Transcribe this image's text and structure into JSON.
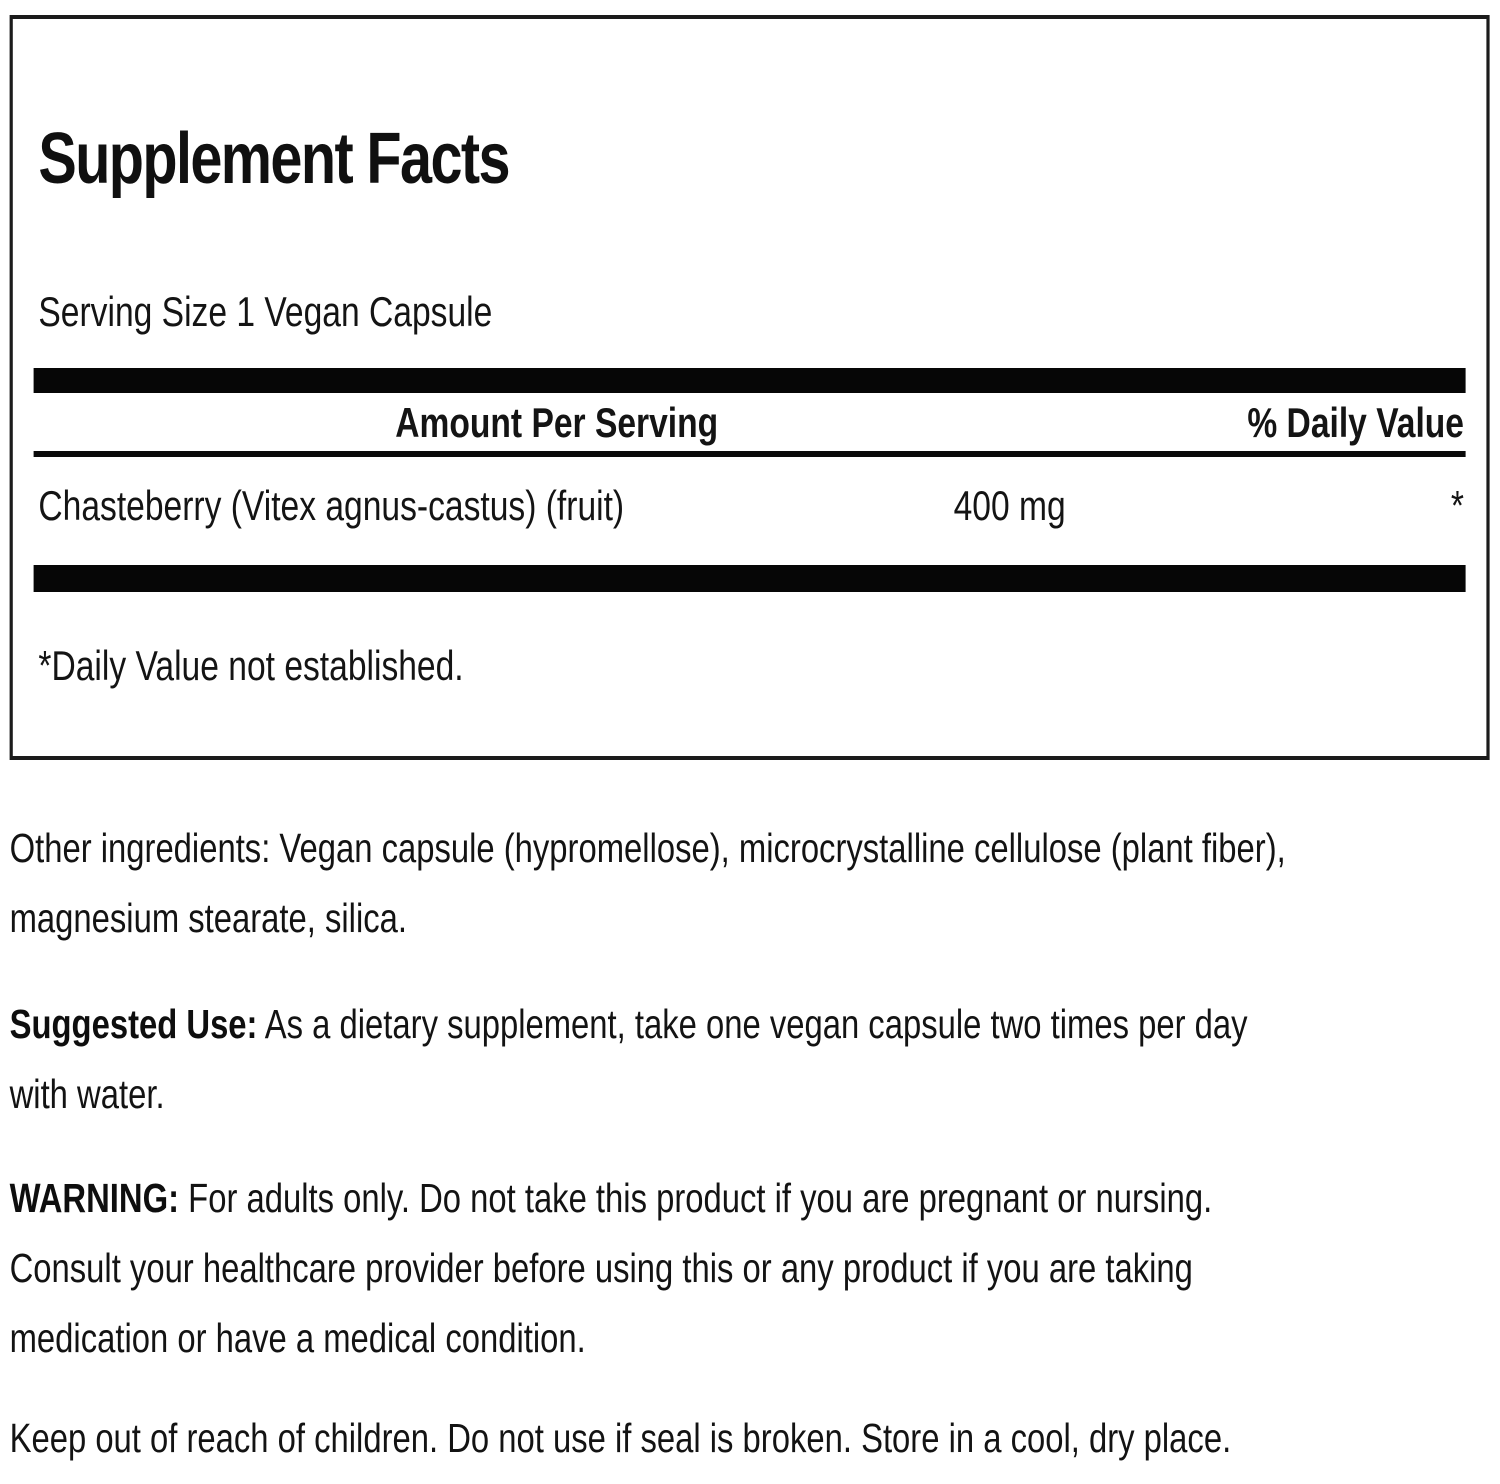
{
  "colors": {
    "text": "#141414",
    "panel_border": "#1b1b1b",
    "bar": "#060606",
    "background": "#ffffff"
  },
  "panel": {
    "title": "Supplement Facts",
    "serving_size": "Serving Size 1 Vegan Capsule",
    "columns": {
      "amount": "Amount Per Serving",
      "daily_value": "% Daily Value"
    },
    "rows": [
      {
        "name": "Chasteberry (Vitex agnus-castus) (fruit)",
        "amount": "400 mg",
        "daily_value": "*"
      }
    ],
    "footnote": "*Daily Value not established."
  },
  "sections": {
    "other_ingredients": "Other ingredients: Vegan capsule (hypromellose), microcrystalline cellulose (plant fiber),\nmagnesium stearate, silica.",
    "suggested_use_label": "Suggested Use:",
    "suggested_use_text": " As a dietary supplement, take one vegan capsule two times per day\nwith water.",
    "warning_label": "WARNING:",
    "warning_text": " For adults only. Do not take this product if you are pregnant or nursing.\nConsult your healthcare provider before using this or any product if you are taking\nmedication or have a medical condition.",
    "storage": "Keep out of reach of children. Do not use if seal is broken. Store in a cool, dry place."
  }
}
